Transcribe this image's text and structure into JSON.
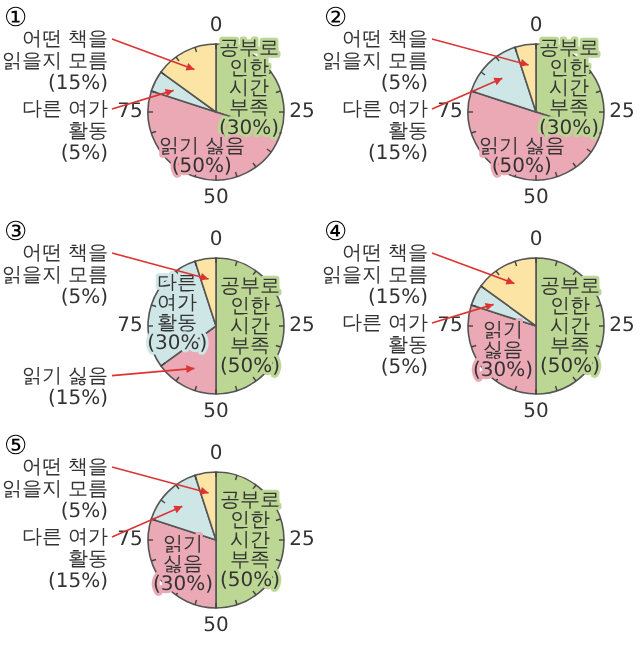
{
  "chart_data": [
    {
      "type": "pie",
      "title": "①",
      "categories": [
        "공부로 인한 시간 부족",
        "읽기 싫음",
        "다른 여가 활동",
        "어떤 책을 읽을지 모름"
      ],
      "values": [
        30,
        50,
        5,
        15
      ],
      "value_labels": [
        "(30%)",
        "(50%)",
        "(5%)",
        "(15%)"
      ],
      "colors": [
        "#bcd694",
        "#eaa9b4",
        "#cfe6e6",
        "#fbe4a4"
      ],
      "annotations": [
        "0",
        "25",
        "50",
        "75"
      ]
    },
    {
      "type": "pie",
      "title": "②",
      "categories": [
        "공부로 인한 시간 부족",
        "읽기 싫음",
        "다른 여가 활동",
        "어떤 책을 읽을지 모름"
      ],
      "values": [
        30,
        50,
        15,
        5
      ],
      "value_labels": [
        "(30%)",
        "(50%)",
        "(15%)",
        "(5%)"
      ],
      "colors": [
        "#bcd694",
        "#eaa9b4",
        "#cfe6e6",
        "#fbe4a4"
      ],
      "annotations": [
        "0",
        "25",
        "50",
        "75"
      ]
    },
    {
      "type": "pie",
      "title": "③",
      "categories": [
        "공부로 인한 시간 부족",
        "읽기 싫음",
        "다른 여가 활동",
        "어떤 책을 읽을지 모름"
      ],
      "values": [
        50,
        15,
        30,
        5
      ],
      "value_labels": [
        "(50%)",
        "(15%)",
        "(30%)",
        "(5%)"
      ],
      "colors": [
        "#bcd694",
        "#eaa9b4",
        "#cfe6e6",
        "#fbe4a4"
      ],
      "annotations": [
        "0",
        "25",
        "50",
        "75"
      ]
    },
    {
      "type": "pie",
      "title": "④",
      "categories": [
        "공부로 인한 시간 부족",
        "읽기 싫음",
        "다른 여가 활동",
        "어떤 책을 읽을지 모름"
      ],
      "values": [
        50,
        30,
        5,
        15
      ],
      "value_labels": [
        "(50%)",
        "(30%)",
        "(5%)",
        "(15%)"
      ],
      "colors": [
        "#bcd694",
        "#eaa9b4",
        "#cfe6e6",
        "#fbe4a4"
      ],
      "annotations": [
        "0",
        "25",
        "50",
        "75"
      ]
    },
    {
      "type": "pie",
      "title": "⑤",
      "categories": [
        "공부로 인한 시간 부족",
        "읽기 싫음",
        "다른 여가 활동",
        "어떤 책을 읽을지 모름"
      ],
      "values": [
        50,
        30,
        15,
        5
      ],
      "value_labels": [
        "(50%)",
        "(30%)",
        "(15%)",
        "(5%)"
      ],
      "colors": [
        "#bcd694",
        "#eaa9b4",
        "#cfe6e6",
        "#fbe4a4"
      ],
      "annotations": [
        "0",
        "25",
        "50",
        "75"
      ]
    }
  ]
}
